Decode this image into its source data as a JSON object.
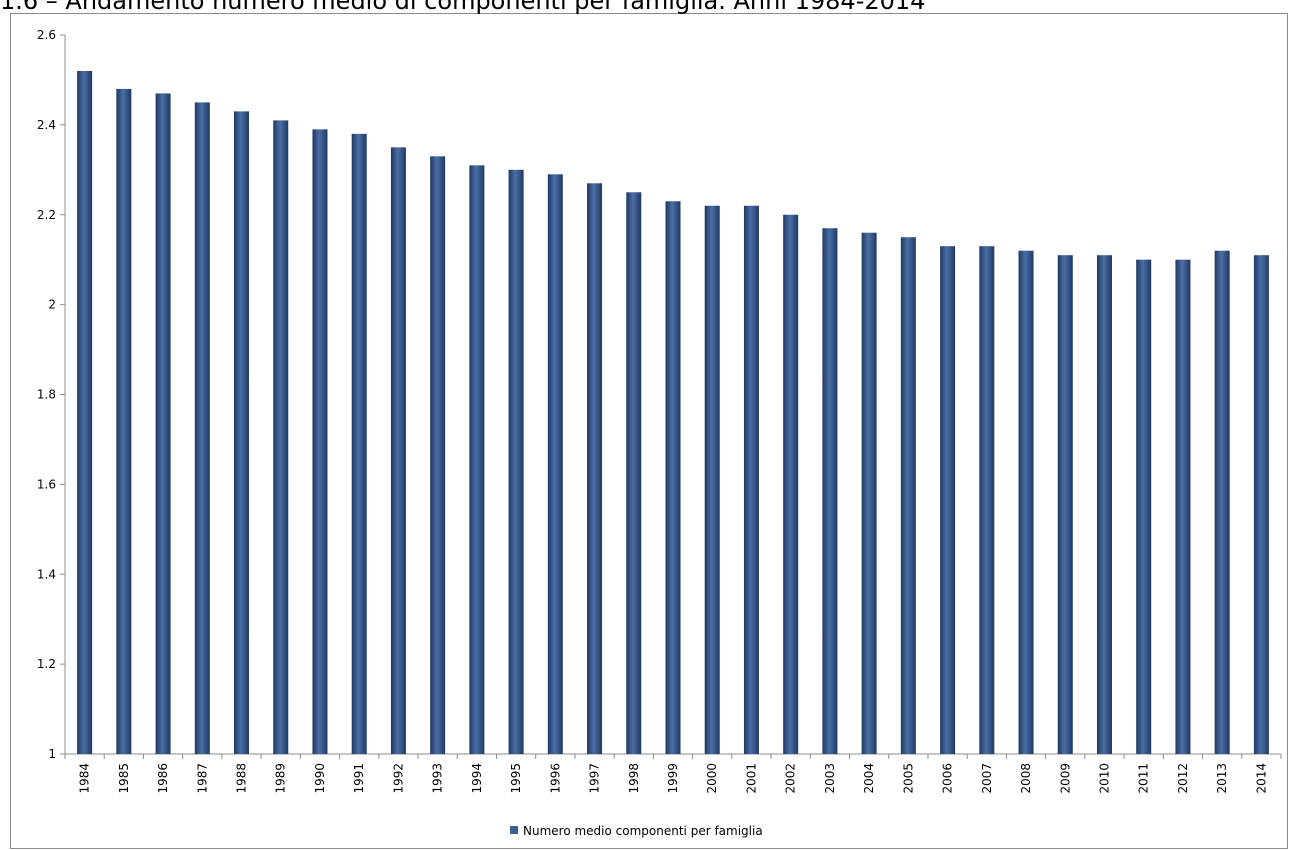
{
  "page_title": "1.6 – Andamento numero medio di componenti per famiglia. Anni 1984-2014",
  "colors": {
    "bar_dark": "#1f3864",
    "bar_mid": "#4a6fa5",
    "bar_light": "#3a5c8c",
    "axis": "#8c8c8c",
    "legend_swatch": "#3c5f93"
  },
  "chart_data": {
    "type": "bar",
    "title": "1.6 – Andamento numero medio di componenti per famiglia. Anni 1984-2014",
    "xlabel": "",
    "ylabel": "",
    "ylim": [
      1,
      2.6
    ],
    "y_ticks": [
      "1",
      "1.2",
      "1.4",
      "1.6",
      "1.8",
      "2",
      "2.2",
      "2.4",
      "2.6"
    ],
    "categories": [
      "1984",
      "1985",
      "1986",
      "1987",
      "1988",
      "1989",
      "1990",
      "1991",
      "1992",
      "1993",
      "1994",
      "1995",
      "1996",
      "1997",
      "1998",
      "1999",
      "2000",
      "2001",
      "2002",
      "2003",
      "2004",
      "2005",
      "2006",
      "2007",
      "2008",
      "2009",
      "2010",
      "2011",
      "2012",
      "2013",
      "2014"
    ],
    "series": [
      {
        "name": "Numero medio componenti per famiglia",
        "values": [
          2.52,
          2.48,
          2.47,
          2.45,
          2.43,
          2.41,
          2.39,
          2.38,
          2.35,
          2.33,
          2.31,
          2.3,
          2.29,
          2.27,
          2.25,
          2.23,
          2.22,
          2.22,
          2.2,
          2.17,
          2.16,
          2.15,
          2.13,
          2.13,
          2.12,
          2.11,
          2.11,
          2.1,
          2.1,
          2.12,
          2.11
        ]
      }
    ],
    "grid": false,
    "legend_position": "bottom"
  }
}
